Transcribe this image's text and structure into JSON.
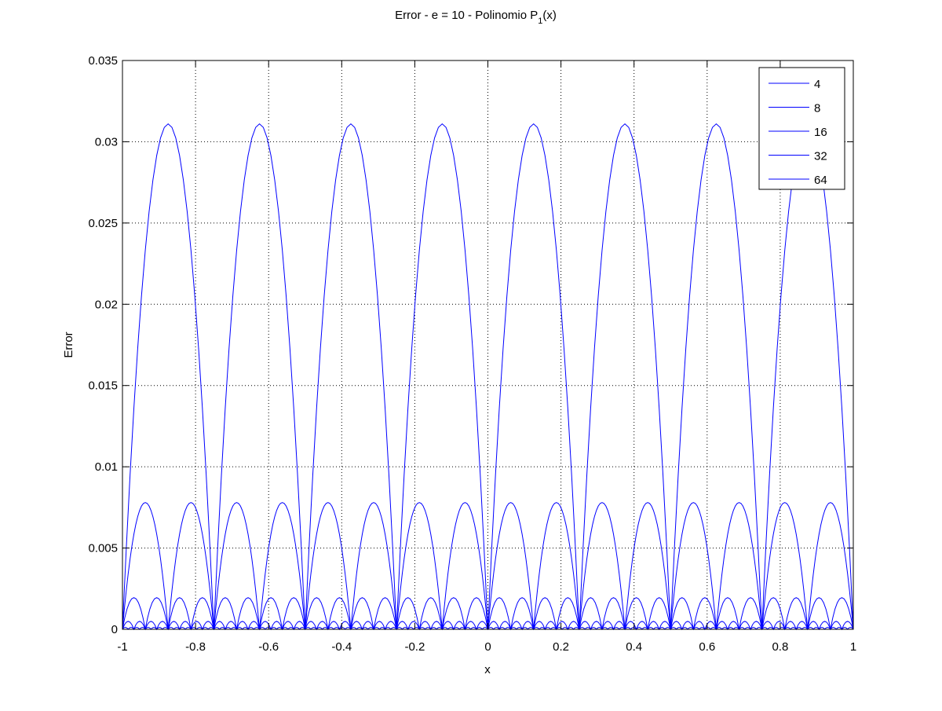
{
  "chart_data": {
    "type": "line",
    "title": {
      "prefix": "Error - e = 10 - Polinomio P",
      "subscript": "1",
      "suffix": "(x)"
    },
    "xlabel": "x",
    "ylabel": "Error",
    "xlim": [
      -1,
      1
    ],
    "ylim": [
      0,
      0.035
    ],
    "x_ticks": [
      -1,
      -0.8,
      -0.6,
      -0.4,
      -0.2,
      0,
      0.2,
      0.4,
      0.6,
      0.8,
      1
    ],
    "x_tick_labels": [
      "-1",
      "-0.8",
      "-0.6",
      "-0.4",
      "-0.2",
      "0",
      "0.2",
      "0.4",
      "0.6",
      "0.8",
      "1"
    ],
    "y_ticks": [
      0,
      0.005,
      0.01,
      0.015,
      0.02,
      0.025,
      0.03,
      0.035
    ],
    "y_tick_labels": [
      "0",
      "0.005",
      "0.01",
      "0.015",
      "0.02",
      "0.025",
      "0.03",
      "0.035"
    ],
    "grid": true,
    "grid_style": "dotted",
    "legend_position": "top-right",
    "line_color": "#0000ff",
    "series": [
      {
        "name": "4",
        "intervals": 8,
        "peak": 0.0311
      },
      {
        "name": "8",
        "intervals": 16,
        "peak": 0.0078
      },
      {
        "name": "16",
        "intervals": 32,
        "peak": 0.00195
      },
      {
        "name": "32",
        "intervals": 64,
        "peak": 0.00049
      },
      {
        "name": "64",
        "intervals": 128,
        "peak": 0.00012
      }
    ]
  }
}
